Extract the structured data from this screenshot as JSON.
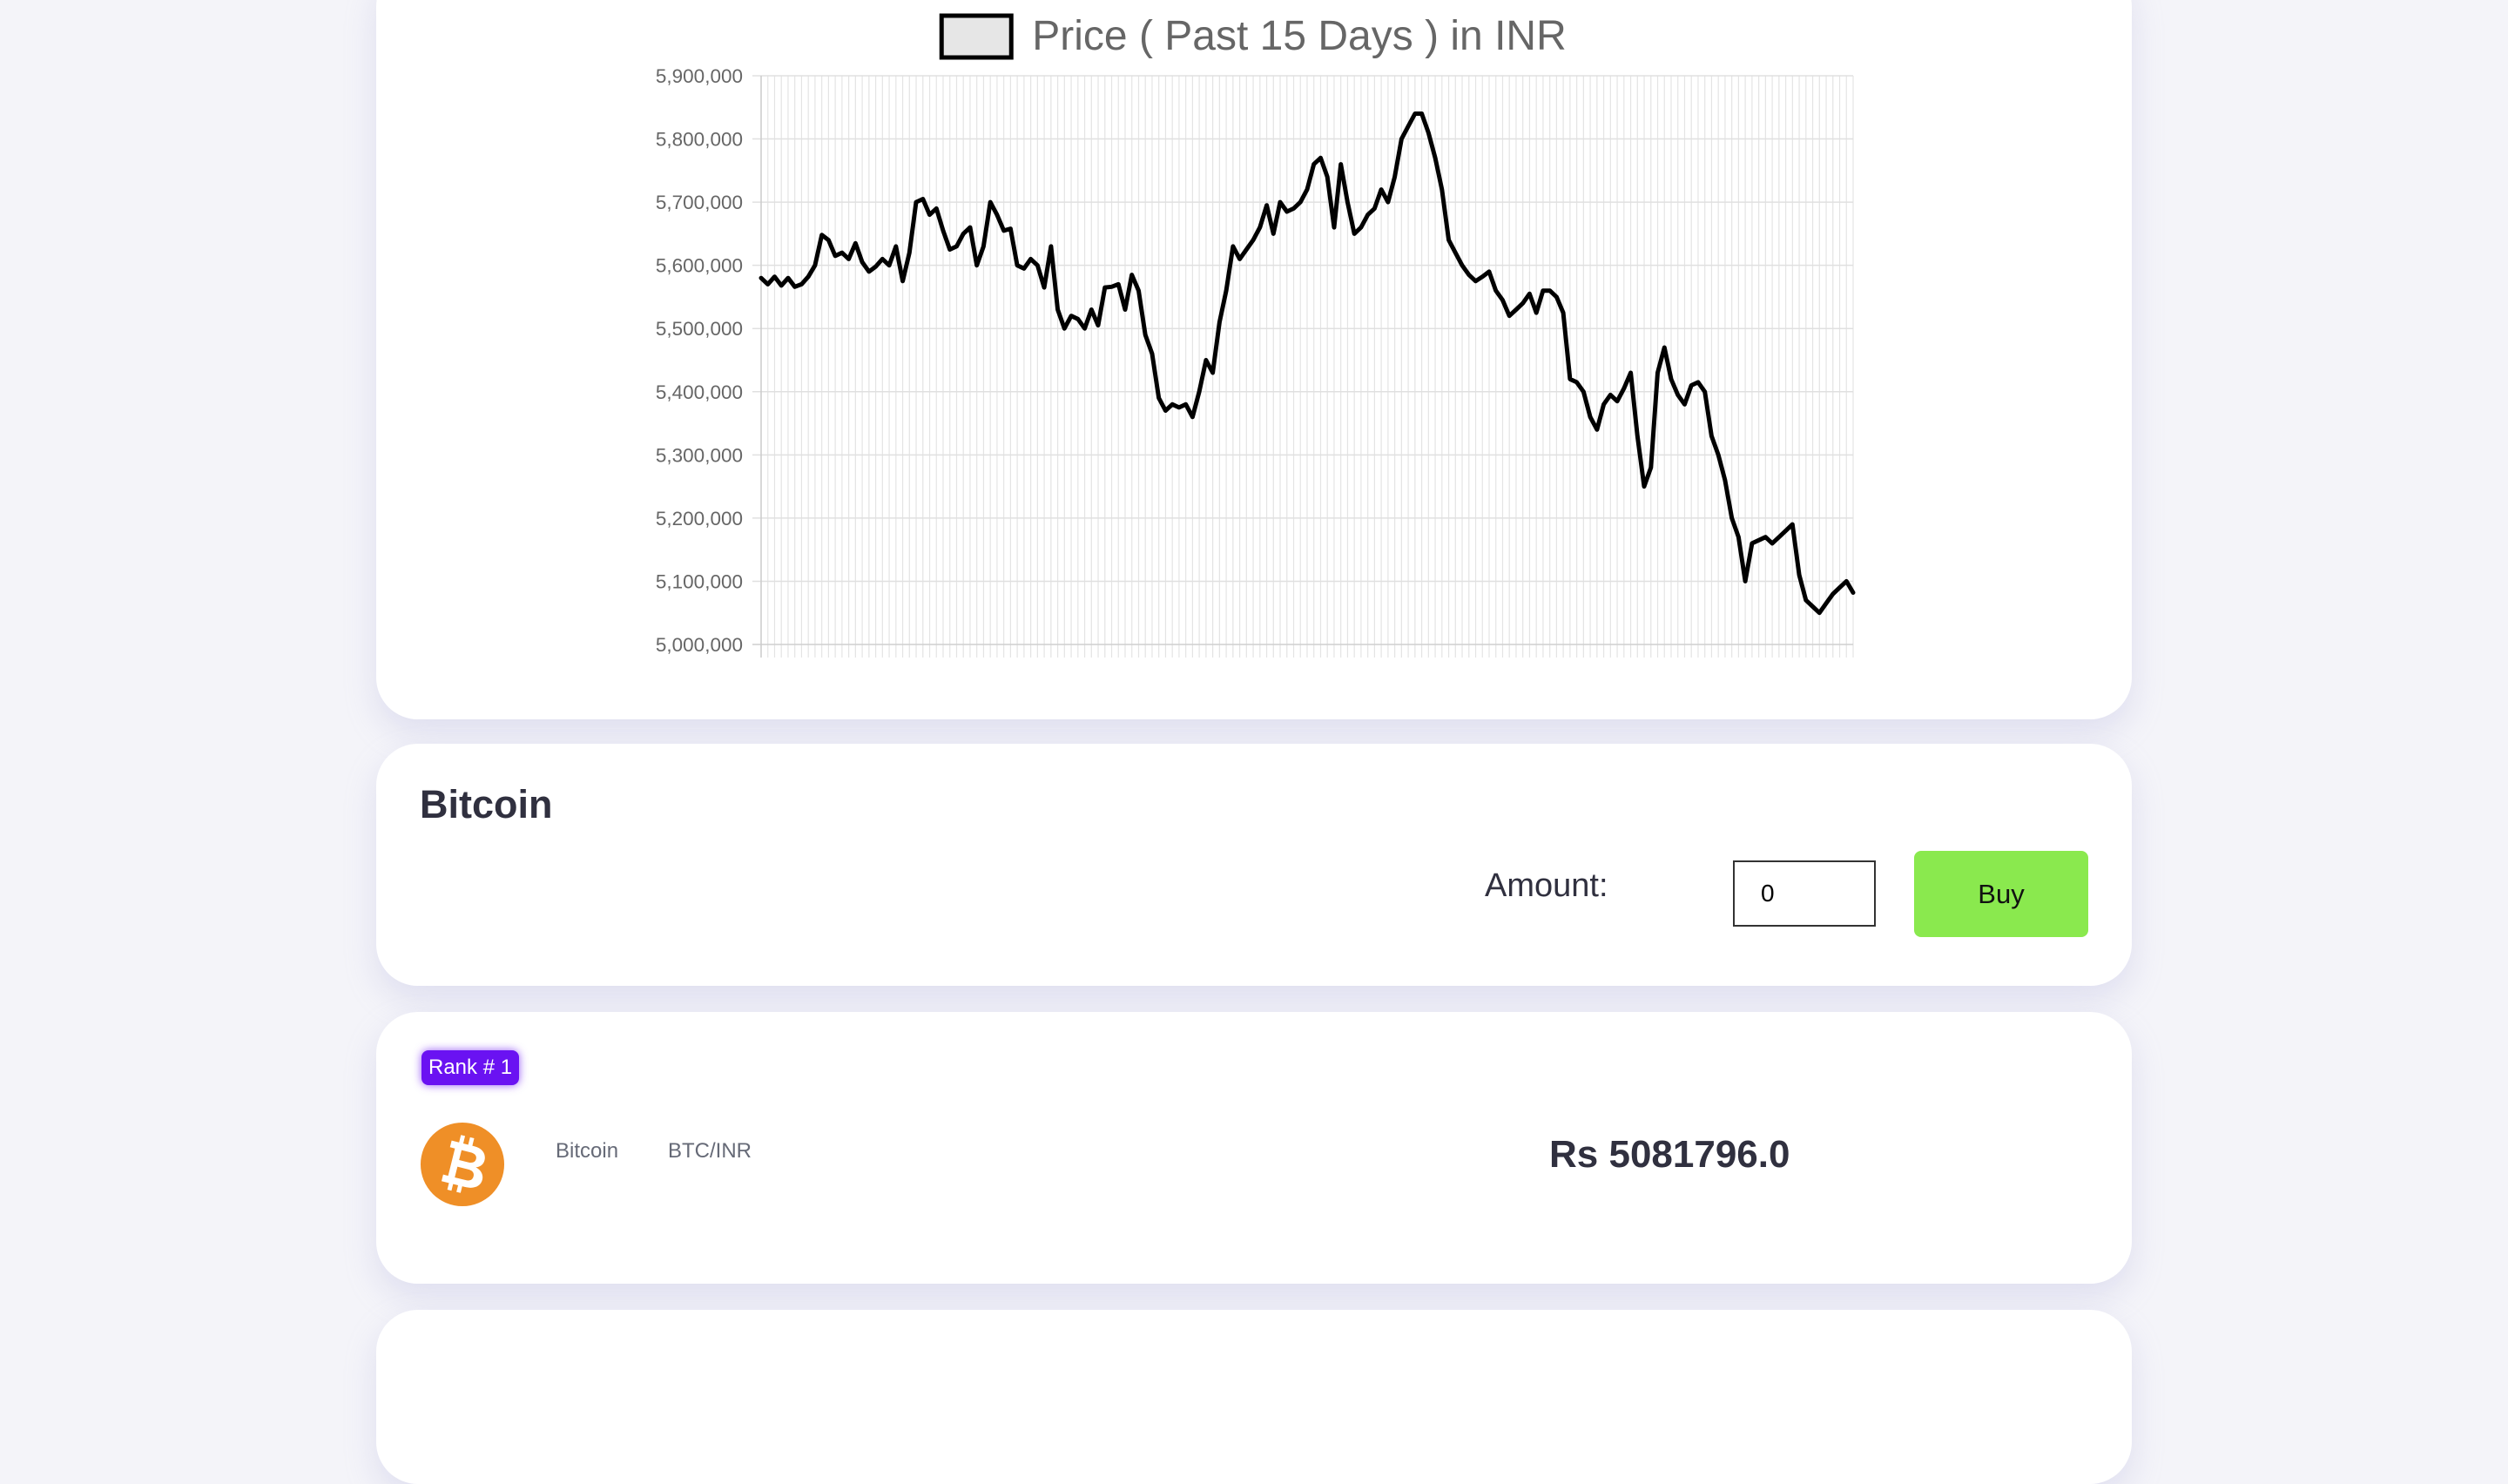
{
  "chart_data": {
    "type": "line",
    "legend": "Price ( Past 15 Days ) in INR",
    "legend_position": "top",
    "series": [
      {
        "name": "Price ( Past 15 Days ) in INR",
        "color": "#000000",
        "legend_fill": "#e6e6e6",
        "values": [
          5580000,
          5570000,
          5582000,
          5568000,
          5580000,
          5566000,
          5570000,
          5582000,
          5600000,
          5648000,
          5640000,
          5615000,
          5620000,
          5610000,
          5635000,
          5605000,
          5590000,
          5598000,
          5610000,
          5600000,
          5630000,
          5575000,
          5620000,
          5700000,
          5705000,
          5680000,
          5690000,
          5655000,
          5625000,
          5630000,
          5650000,
          5660000,
          5600000,
          5630000,
          5700000,
          5680000,
          5655000,
          5658000,
          5600000,
          5595000,
          5610000,
          5600000,
          5565000,
          5630000,
          5530000,
          5500000,
          5520000,
          5515000,
          5500000,
          5530000,
          5505000,
          5565000,
          5566000,
          5570000,
          5530000,
          5585000,
          5560000,
          5490000,
          5460000,
          5390000,
          5370000,
          5380000,
          5375000,
          5380000,
          5360000,
          5400000,
          5450000,
          5430000,
          5510000,
          5560000,
          5630000,
          5610000,
          5625000,
          5640000,
          5660000,
          5695000,
          5650000,
          5700000,
          5685000,
          5690000,
          5700000,
          5720000,
          5760000,
          5770000,
          5740000,
          5660000,
          5760000,
          5700000,
          5650000,
          5660000,
          5680000,
          5690000,
          5720000,
          5700000,
          5740000,
          5800000,
          5820000,
          5840000,
          5840000,
          5810000,
          5770000,
          5720000,
          5640000,
          5620000,
          5600000,
          5585000,
          5575000,
          5582000,
          5590000,
          5560000,
          5545000,
          5520000,
          5530000,
          5540000,
          5555000,
          5525000,
          5560000,
          5560000,
          5550000,
          5525000,
          5420000,
          5415000,
          5400000,
          5360000,
          5340000,
          5380000,
          5395000,
          5385000,
          5405000,
          5430000,
          5330000,
          5250000,
          5280000,
          5430000,
          5470000,
          5420000,
          5395000,
          5380000,
          5410000,
          5415000,
          5400000,
          5330000,
          5300000,
          5260000,
          5200000,
          5170000,
          5100000,
          5160000,
          5165000,
          5170000,
          5160000,
          5170000,
          5180000,
          5190000,
          5110000,
          5070000,
          5060000,
          5050000,
          5065000,
          5080000,
          5090000,
          5100000,
          5082000
        ]
      }
    ],
    "ylim": [
      5000000,
      5900000
    ],
    "yticks": [
      5000000,
      5100000,
      5200000,
      5300000,
      5400000,
      5500000,
      5600000,
      5700000,
      5800000,
      5900000
    ],
    "ytick_labels": [
      "5,000,000",
      "5,100,000",
      "5,200,000",
      "5,300,000",
      "5,400,000",
      "5,500,000",
      "5,600,000",
      "5,700,000",
      "5,800,000",
      "5,900,000"
    ],
    "grid": true
  },
  "trade": {
    "title": "Bitcoin",
    "amount_label": "Amount:",
    "amount_value": "0",
    "buy_label": "Buy"
  },
  "coin": {
    "rank_label": "Rank # 1",
    "name": "Bitcoin",
    "pair": "BTC/INR",
    "price": "Rs 5081796.0",
    "logo_icon": "bitcoin-icon",
    "logo_color": "#ef8f27",
    "rank_color": "#6a12f2"
  },
  "colors": {
    "buy_button": "#8ae94e",
    "page_background": "#f4f4f9"
  }
}
